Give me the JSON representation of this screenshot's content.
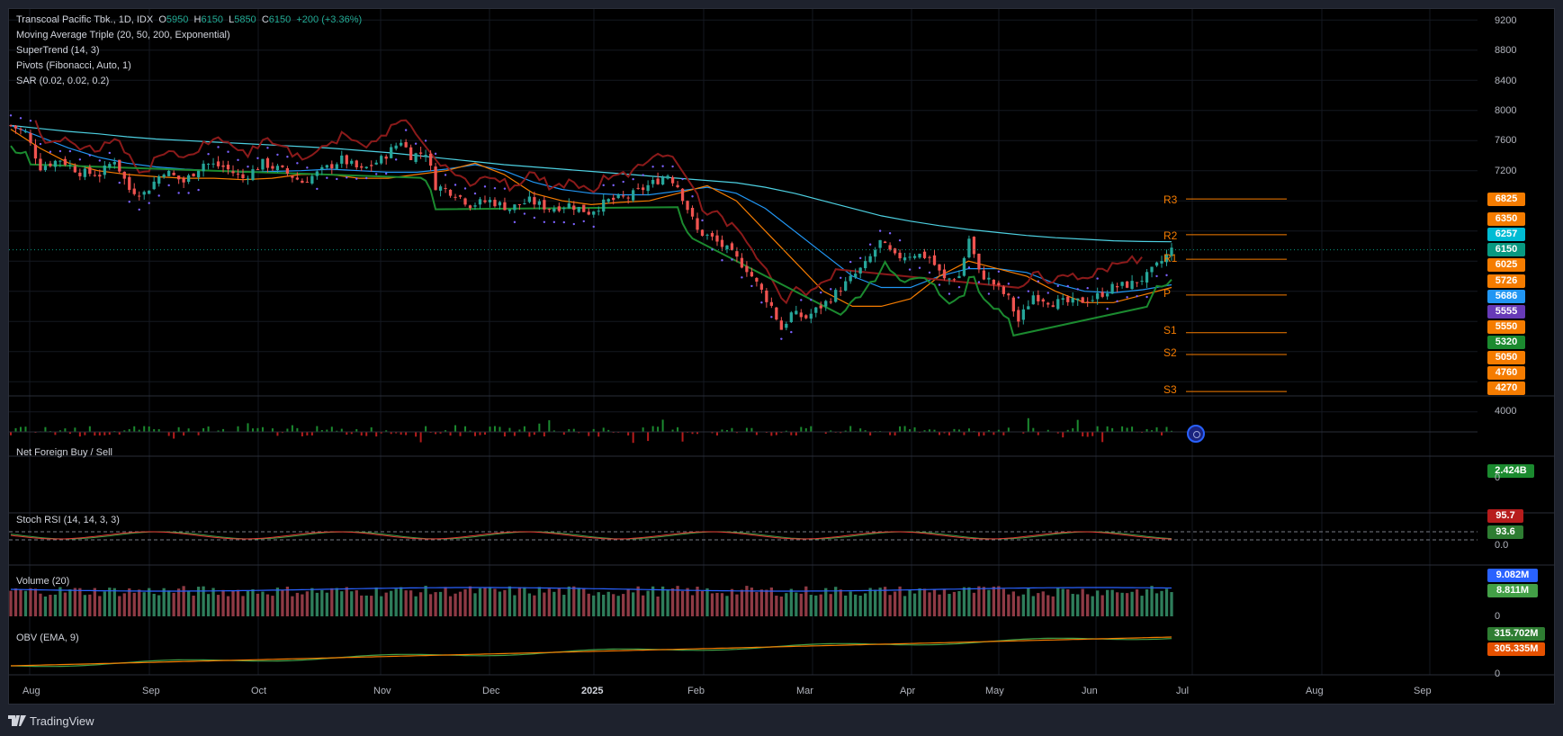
{
  "chart_data": {
    "type": "candlestick",
    "symbol_header": {
      "name": "Transcoal Pacific Tbk., 1D, IDX",
      "o_label": "O",
      "o": "5950",
      "h_label": "H",
      "h": "6150",
      "l_label": "L",
      "l": "5850",
      "c_label": "C",
      "c": "6150",
      "change": "+200 (+3.36%)"
    },
    "indicators": [
      "Moving Average Triple (20, 50, 200, Exponential)",
      "SuperTrend (14, 3)",
      "Pivots (Fibonacci, Auto, 1)",
      "SAR (0.02, 0.02, 0.2)"
    ],
    "price_axis_ticks": [
      "9200",
      "8800",
      "8400",
      "8000",
      "7600",
      "7200",
      "4000"
    ],
    "price_badges": [
      {
        "value": "6825",
        "color": "#f57c00"
      },
      {
        "value": "6350",
        "color": "#f57c00"
      },
      {
        "value": "6257",
        "color": "#00bcd4"
      },
      {
        "value": "6150",
        "color": "#089981"
      },
      {
        "value": "6025",
        "color": "#f57c00"
      },
      {
        "value": "5726",
        "color": "#f57c00"
      },
      {
        "value": "5686",
        "color": "#2196f3"
      },
      {
        "value": "5555",
        "color": "#673ab7"
      },
      {
        "value": "5550",
        "color": "#f57c00"
      },
      {
        "value": "5320",
        "color": "#1b8a2f"
      },
      {
        "value": "5050",
        "color": "#f57c00"
      },
      {
        "value": "4760",
        "color": "#f57c00"
      },
      {
        "value": "4270",
        "color": "#f57c00"
      }
    ],
    "pivot_levels": [
      {
        "label": "R3",
        "value": 6825
      },
      {
        "label": "R2",
        "value": 6350
      },
      {
        "label": "R1",
        "value": 6025
      },
      {
        "label": "P",
        "value": 5550
      },
      {
        "label": "S1",
        "value": 5050
      },
      {
        "label": "S2",
        "value": 4760
      },
      {
        "label": "S3",
        "value": 4270
      }
    ],
    "x_axis_ticks": [
      {
        "label": "Aug",
        "bold": false
      },
      {
        "label": "Sep",
        "bold": false
      },
      {
        "label": "Oct",
        "bold": false
      },
      {
        "label": "Nov",
        "bold": false
      },
      {
        "label": "Dec",
        "bold": false
      },
      {
        "label": "2025",
        "bold": true
      },
      {
        "label": "Feb",
        "bold": false
      },
      {
        "label": "Mar",
        "bold": false
      },
      {
        "label": "Apr",
        "bold": false
      },
      {
        "label": "May",
        "bold": false
      },
      {
        "label": "Jun",
        "bold": false
      },
      {
        "label": "Jul",
        "bold": false
      },
      {
        "label": "Aug",
        "bold": false
      },
      {
        "label": "Sep",
        "bold": false
      }
    ],
    "close_trend": [
      {
        "t": 0,
        "v": 7800
      },
      {
        "t": 3,
        "v": 7700
      },
      {
        "t": 6,
        "v": 7250
      },
      {
        "t": 10,
        "v": 7350
      },
      {
        "t": 14,
        "v": 7180
      },
      {
        "t": 18,
        "v": 7150
      },
      {
        "t": 21,
        "v": 7350
      },
      {
        "t": 24,
        "v": 6950
      },
      {
        "t": 27,
        "v": 6900
      },
      {
        "t": 31,
        "v": 7200
      },
      {
        "t": 35,
        "v": 7050
      },
      {
        "t": 39,
        "v": 7300
      },
      {
        "t": 43,
        "v": 7250
      },
      {
        "t": 47,
        "v": 7100
      },
      {
        "t": 51,
        "v": 7300
      },
      {
        "t": 55,
        "v": 7200
      },
      {
        "t": 59,
        "v": 7050
      },
      {
        "t": 63,
        "v": 7200
      },
      {
        "t": 67,
        "v": 7350
      },
      {
        "t": 71,
        "v": 7200
      },
      {
        "t": 75,
        "v": 7350
      },
      {
        "t": 79,
        "v": 7600
      },
      {
        "t": 81,
        "v": 7400
      },
      {
        "t": 84,
        "v": 7450
      },
      {
        "t": 86,
        "v": 7000
      },
      {
        "t": 90,
        "v": 6900
      },
      {
        "t": 93,
        "v": 6750
      },
      {
        "t": 97,
        "v": 6800
      },
      {
        "t": 101,
        "v": 6700
      },
      {
        "t": 105,
        "v": 6800
      },
      {
        "t": 109,
        "v": 6700
      },
      {
        "t": 113,
        "v": 6750
      },
      {
        "t": 117,
        "v": 6650
      },
      {
        "t": 121,
        "v": 6800
      },
      {
        "t": 125,
        "v": 6850
      },
      {
        "t": 129,
        "v": 7000
      },
      {
        "t": 133,
        "v": 7150
      },
      {
        "t": 135,
        "v": 7000
      },
      {
        "t": 137,
        "v": 6700
      },
      {
        "t": 139,
        "v": 6400
      },
      {
        "t": 142,
        "v": 6300
      },
      {
        "t": 145,
        "v": 6150
      },
      {
        "t": 149,
        "v": 5900
      },
      {
        "t": 152,
        "v": 5600
      },
      {
        "t": 154,
        "v": 5400
      },
      {
        "t": 156,
        "v": 5100
      },
      {
        "t": 158,
        "v": 5300
      },
      {
        "t": 161,
        "v": 5250
      },
      {
        "t": 165,
        "v": 5450
      },
      {
        "t": 169,
        "v": 5700
      },
      {
        "t": 173,
        "v": 5950
      },
      {
        "t": 176,
        "v": 6250
      },
      {
        "t": 179,
        "v": 6050
      },
      {
        "t": 183,
        "v": 6100
      },
      {
        "t": 186,
        "v": 6050
      },
      {
        "t": 189,
        "v": 5750
      },
      {
        "t": 192,
        "v": 5800
      },
      {
        "t": 194,
        "v": 6300
      },
      {
        "t": 196,
        "v": 5850
      },
      {
        "t": 199,
        "v": 5700
      },
      {
        "t": 202,
        "v": 5500
      },
      {
        "t": 204,
        "v": 5200
      },
      {
        "t": 207,
        "v": 5550
      },
      {
        "t": 211,
        "v": 5450
      },
      {
        "t": 215,
        "v": 5450
      },
      {
        "t": 219,
        "v": 5500
      },
      {
        "t": 223,
        "v": 5650
      },
      {
        "t": 227,
        "v": 5700
      },
      {
        "t": 230,
        "v": 5800
      },
      {
        "t": 233,
        "v": 6000
      },
      {
        "t": 235,
        "v": 6150
      }
    ],
    "ema20_trend": [
      7750,
      7500,
      7300,
      7200,
      7150,
      7120,
      7100,
      7100,
      7080,
      7100,
      7150,
      7150,
      7100,
      7100,
      7150,
      7200,
      7300,
      7150,
      6900,
      6800,
      6750,
      6780,
      6800,
      6900,
      7000,
      6800,
      6400,
      6000,
      5600,
      5400,
      5400,
      5500,
      5800,
      6000,
      5900,
      5800,
      5600,
      5450,
      5450,
      5550,
      5650
    ],
    "ema50_trend": [
      7800,
      7650,
      7500,
      7380,
      7300,
      7250,
      7220,
      7200,
      7180,
      7190,
      7200,
      7220,
      7200,
      7180,
      7180,
      7220,
      7280,
      7200,
      7050,
      6950,
      6900,
      6880,
      6880,
      6930,
      6980,
      6900,
      6700,
      6400,
      6100,
      5800,
      5650,
      5650,
      5800,
      5900,
      5900,
      5850,
      5700,
      5600,
      5580,
      5620,
      5686
    ],
    "ema200_trend": [
      7800,
      7760,
      7720,
      7690,
      7650,
      7620,
      7600,
      7580,
      7560,
      7540,
      7520,
      7500,
      7470,
      7440,
      7400,
      7360,
      7320,
      7280,
      7250,
      7220,
      7190,
      7160,
      7130,
      7100,
      7070,
      7040,
      6980,
      6900,
      6800,
      6700,
      6600,
      6530,
      6470,
      6420,
      6380,
      6340,
      6310,
      6290,
      6270,
      6260,
      6257
    ],
    "net_foreign_last": "2.424B",
    "stoch_rsi": {
      "title": "Stoch RSI (14, 14, 3, 3)",
      "k": "95.7",
      "d": "93.6",
      "axis": "0.0"
    },
    "net_foreign_title": "Net Foreign Buy / Sell",
    "net_foreign_axis": "0",
    "volume": {
      "title": "Volume (20)",
      "ma": "9.082M",
      "last": "8.811M",
      "axis": "0"
    },
    "obv": {
      "title": "OBV (EMA, 9)",
      "obv": "315.702M",
      "ema": "305.335M",
      "axis": "0"
    }
  },
  "footer": {
    "brand": "TradingView"
  },
  "colors": {
    "up": "#26a69a",
    "down": "#ef5350",
    "ema20": "#f57c00",
    "ema50": "#2196f3",
    "ema200": "#4dd0e1",
    "supertrend_up": "#1b8a2f",
    "supertrend_down": "#8b1a1a",
    "sar": "#7b61ff",
    "pivot": "#f57c00"
  }
}
